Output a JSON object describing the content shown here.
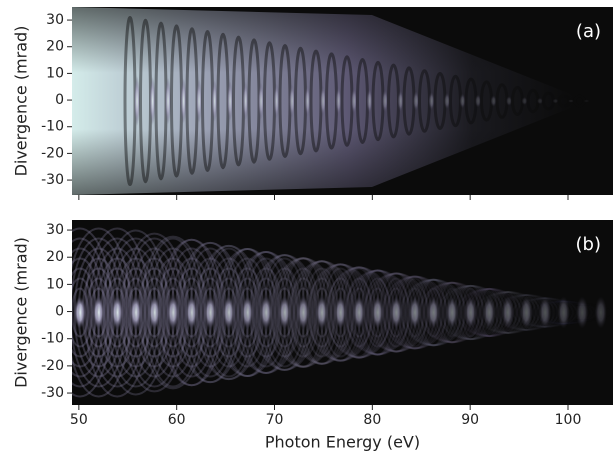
{
  "chart_data": [
    {
      "type": "image",
      "label": "(a)",
      "ylabel": "Divergence (mrad)",
      "xlim": [
        49.3,
        104.6
      ],
      "ylim": [
        -35.6,
        34.9
      ],
      "yticks": [
        -30,
        -20,
        -10,
        0,
        10,
        20,
        30
      ]
    },
    {
      "type": "image",
      "label": "(b)",
      "ylabel": "Divergence (mrad)",
      "xlabel": "Photon Energy (eV)",
      "xlim": [
        49.3,
        104.6
      ],
      "ylim": [
        -34.4,
        33.7
      ],
      "xticks": [
        50,
        60,
        70,
        80,
        90,
        100
      ],
      "yticks": [
        -30,
        -20,
        -10,
        0,
        10,
        20,
        30
      ]
    }
  ]
}
